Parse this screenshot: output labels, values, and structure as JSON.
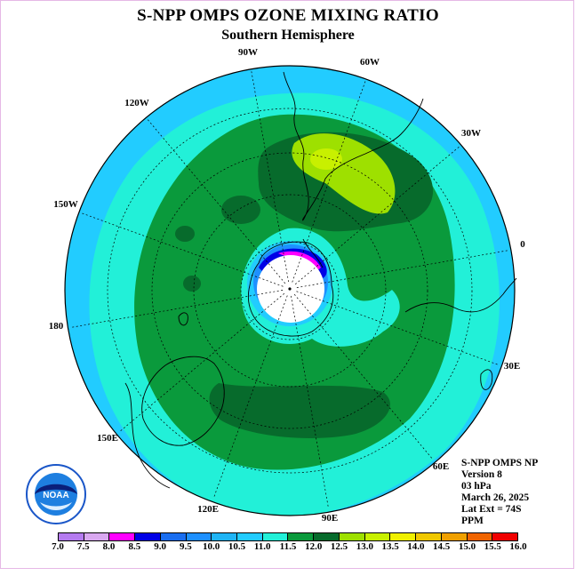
{
  "title": "S-NPP OMPS OZONE MIXING RATIO",
  "subtitle": "Southern Hemisphere",
  "longitude_labels": [
    "90W",
    "60W",
    "30W",
    "0",
    "30E",
    "60E",
    "90E",
    "120E",
    "150E",
    "180",
    "150W",
    "120W"
  ],
  "info": {
    "instrument": "S-NPP OMPS NP",
    "version": "Version 8",
    "level": "03 hPa",
    "date": "March 26, 2025",
    "lat_ext": "Lat Ext = 74S",
    "units": "PPM"
  },
  "colorbar": {
    "ticks": [
      "7.0",
      "7.5",
      "8.0",
      "8.5",
      "9.0",
      "9.5",
      "10.0",
      "10.5",
      "11.0",
      "11.5",
      "12.0",
      "12.5",
      "13.0",
      "13.5",
      "14.0",
      "14.5",
      "15.0",
      "15.5",
      "16.0"
    ],
    "colors": [
      "#b57bf0",
      "#d9a8f0",
      "#ff00ff",
      "#0000e6",
      "#1a6ef0",
      "#1e90ff",
      "#1fb4f5",
      "#22ccff",
      "#22f0d8",
      "#0a9a3c",
      "#076b2c",
      "#9ee000",
      "#c8f000",
      "#f0f000",
      "#f0c800",
      "#f0a000",
      "#f06400",
      "#f00000",
      "#8b5a3c"
    ]
  },
  "logo_text": "NOAA",
  "colors": {
    "outer": "#22ccff",
    "cyan": "#22f0d8",
    "green": "#0a9a3c",
    "dark_green": "#076b2c",
    "lime": "#9ee000",
    "yellow": "#c8f000",
    "pole": "#ffffff"
  }
}
